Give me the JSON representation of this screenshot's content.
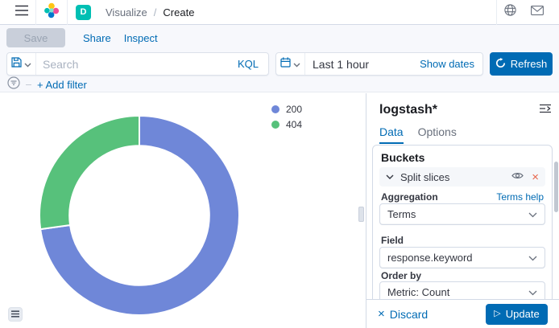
{
  "header": {
    "breadcrumb_section": "Visualize",
    "breadcrumb_sep": "/",
    "breadcrumb_page": "Create",
    "space_badge": "D"
  },
  "toolbar": {
    "save_label": "Save",
    "share_label": "Share",
    "inspect_label": "Inspect"
  },
  "querybar": {
    "search_placeholder": "Search",
    "language_label": "KQL",
    "time_value": "Last 1 hour",
    "show_dates_label": "Show dates",
    "refresh_label": "Refresh",
    "add_filter_label": "+ Add filter"
  },
  "panel": {
    "index_pattern": "logstash*",
    "tabs": [
      {
        "label": "Data"
      },
      {
        "label": "Options"
      }
    ],
    "buckets": {
      "heading": "Buckets",
      "bucket_label": "Split slices",
      "aggregation_label": "Aggregation",
      "aggregation_help": "Terms help",
      "aggregation_value": "Terms",
      "field_label": "Field",
      "field_value": "response.keyword",
      "order_by_label": "Order by",
      "order_by_value": "Metric: Count"
    },
    "footer": {
      "discard_label": "Discard",
      "update_label": "Update"
    }
  },
  "icons": {
    "discard_glyph": "×",
    "remove_glyph": "×",
    "play_glyph": "▷"
  },
  "chart_data": {
    "type": "pie",
    "subtype": "donut",
    "categories": [
      "200",
      "404"
    ],
    "values": [
      72.8,
      27.2
    ],
    "unit": "percent (estimated from arc angles)",
    "colors": [
      "#6F87D8",
      "#57C17B"
    ],
    "start_angle_deg": 0,
    "inner_radius_ratio": 0.7,
    "legend_position": "top-right",
    "legend": [
      {
        "label": "200",
        "color": "#6F87D8"
      },
      {
        "label": "404",
        "color": "#57C17B"
      }
    ]
  },
  "colors": {
    "primary": "#006bb4",
    "badge": "#00bfb3",
    "danger": "#e7664c",
    "border": "#d3dae6",
    "text": "#343741",
    "subdued": "#69707d"
  }
}
